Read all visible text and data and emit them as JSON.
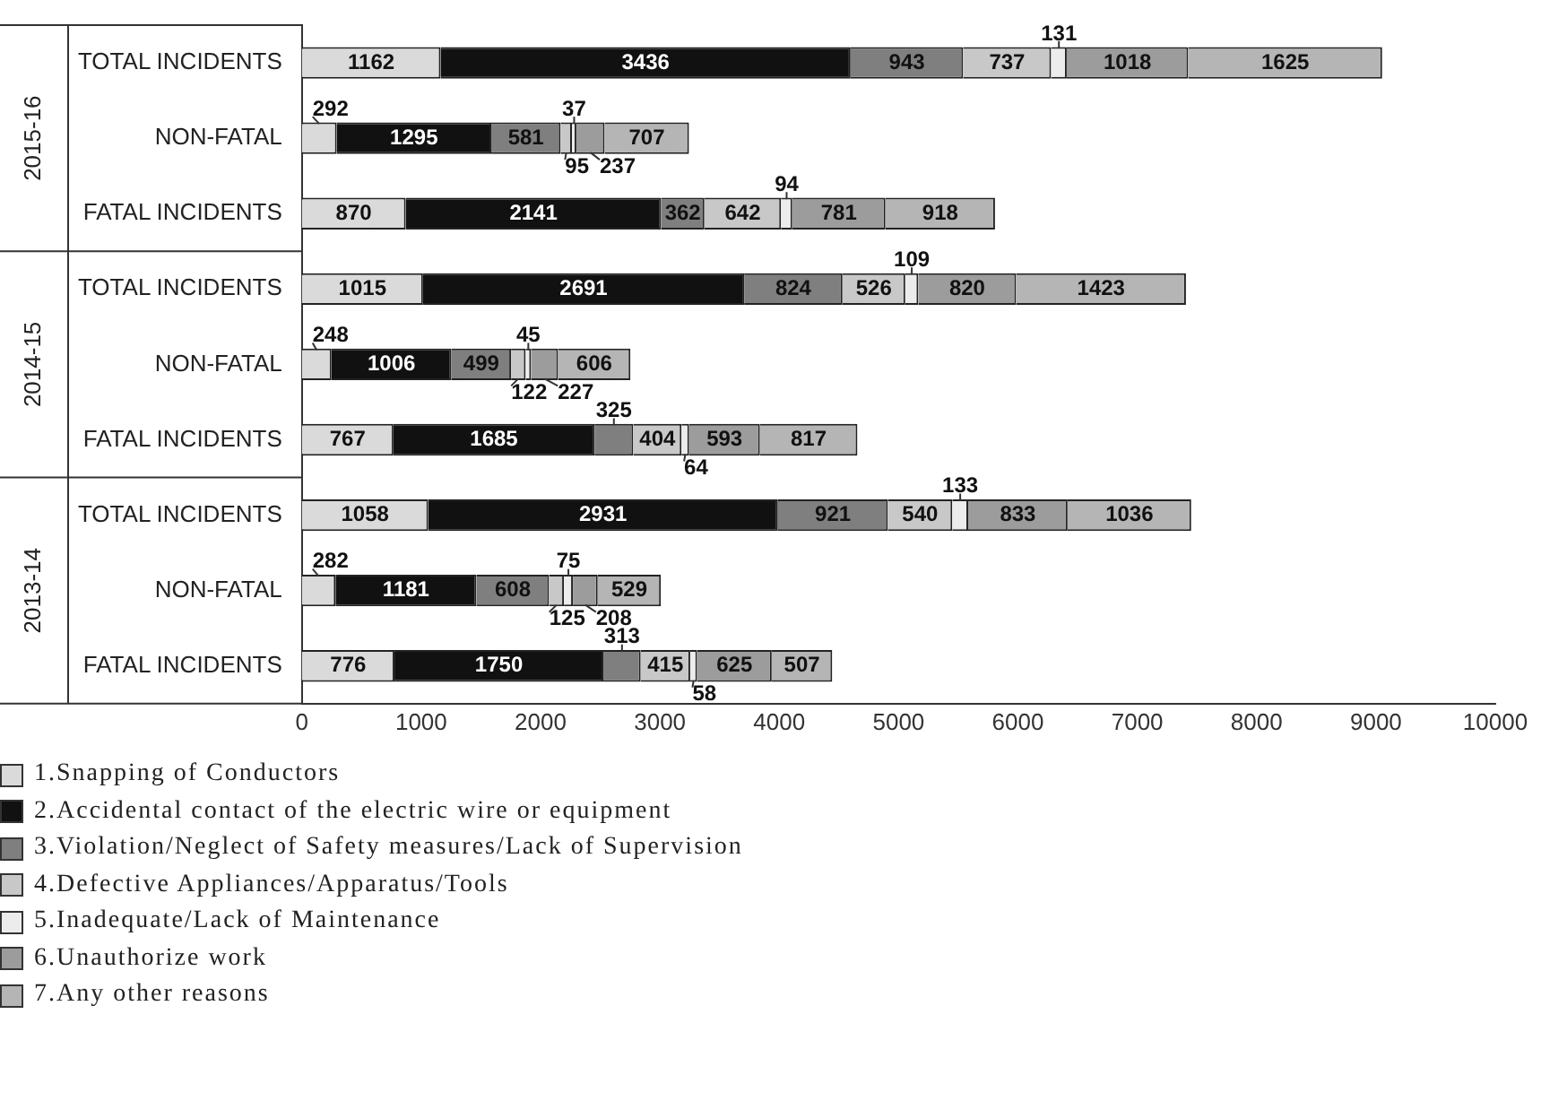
{
  "chart_data": {
    "type": "bar",
    "orientation": "horizontal",
    "stacked": true,
    "categories": [
      "TOTAL INCIDENTS",
      "NON-FATAL",
      "FATAL INCIDENTS",
      "TOTAL INCIDENTS",
      "NON-FATAL",
      "FATAL INCIDENTS",
      "TOTAL INCIDENTS",
      "NON-FATAL",
      "FATAL INCIDENTS"
    ],
    "annotations": [
      "2015-16",
      "2014-15",
      "2013-14"
    ],
    "series": [
      {
        "name": "1.Snapping of Conductors",
        "color": "#dadada",
        "values": [
          1162,
          292,
          870,
          1015,
          248,
          767,
          1058,
          282,
          776
        ]
      },
      {
        "name": "2.Accidental contact of the electric wire or equipment",
        "color": "#111111",
        "values": [
          3436,
          1295,
          2141,
          2691,
          1006,
          1685,
          2931,
          1181,
          1750
        ]
      },
      {
        "name": "3.Violation/Neglect of Safety measures/Lack of Supervision",
        "color": "#7f7f7f",
        "values": [
          943,
          581,
          362,
          824,
          499,
          325,
          921,
          608,
          313
        ]
      },
      {
        "name": "4.Defective Appliances/Apparatus/Tools",
        "color": "#c8c8c8",
        "values": [
          737,
          95,
          642,
          526,
          122,
          404,
          540,
          125,
          415
        ]
      },
      {
        "name": "5.Inadequate/Lack of Maintenance",
        "color": "#ececec",
        "values": [
          131,
          37,
          94,
          109,
          45,
          64,
          133,
          75,
          58
        ]
      },
      {
        "name": "6.Unauthorize work",
        "color": "#9c9c9c",
        "values": [
          1018,
          237,
          781,
          820,
          227,
          593,
          833,
          208,
          625
        ]
      },
      {
        "name": "7.Any other reasons",
        "color": "#b5b5b5",
        "values": [
          1625,
          707,
          918,
          1423,
          606,
          817,
          1036,
          529,
          507
        ]
      }
    ],
    "xlim": [
      0,
      10000
    ],
    "xticks": [
      0,
      1000,
      2000,
      3000,
      4000,
      5000,
      6000,
      7000,
      8000,
      9000,
      10000
    ],
    "grid": false,
    "legend": "bottom",
    "data_labels": true
  }
}
